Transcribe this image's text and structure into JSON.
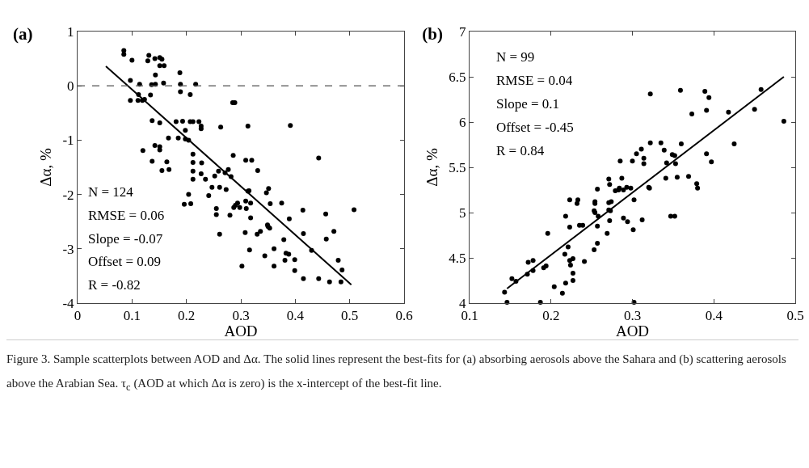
{
  "chart_data": [
    {
      "type": "scatter",
      "title": "(a)",
      "xlabel": "AOD",
      "ylabel": "Δα, %",
      "grid": false,
      "xlim": [
        0,
        0.6
      ],
      "xticks": [
        0,
        0.1,
        0.2,
        0.3,
        0.4,
        0.5,
        0.6
      ],
      "ylim": [
        -4,
        1
      ],
      "yticks": [
        -4,
        -3,
        -2,
        -1,
        0,
        1
      ],
      "ref_lines": [
        {
          "axis": "y",
          "value": 0,
          "color": "#555555",
          "line_style": "dashed"
        }
      ],
      "annotations": [
        "N = 124",
        "RMSE = 0.06",
        "Slope = -0.07",
        "Offset = 0.09",
        "R = -0.82"
      ],
      "series": [
        {
          "type": "scatter",
          "color": "#000000",
          "x": [
            0.085,
            0.085,
            0.1,
            0.131,
            0.129,
            0.142,
            0.151,
            0.155,
            0.151,
            0.159,
            0.143,
            0.097,
            0.114,
            0.136,
            0.143,
            0.158,
            0.188,
            0.189,
            0.217,
            0.189,
            0.207,
            0.112,
            0.097,
            0.111,
            0.119,
            0.123,
            0.134,
            0.285,
            0.289,
            0.137,
            0.151,
            0.181,
            0.193,
            0.207,
            0.212,
            0.223,
            0.227,
            0.227,
            0.263,
            0.313,
            0.198,
            0.167,
            0.185,
            0.198,
            0.204,
            0.12,
            0.142,
            0.151,
            0.151,
            0.137,
            0.164,
            0.155,
            0.168,
            0.212,
            0.212,
            0.228,
            0.286,
            0.309,
            0.32,
            0.331,
            0.212,
            0.227,
            0.212,
            0.235,
            0.252,
            0.259,
            0.271,
            0.277,
            0.282,
            0.247,
            0.261,
            0.273,
            0.315,
            0.241,
            0.204,
            0.196,
            0.208,
            0.255,
            0.255,
            0.28,
            0.287,
            0.294,
            0.298,
            0.29,
            0.31,
            0.318,
            0.318,
            0.309,
            0.391,
            0.443,
            0.313,
            0.347,
            0.351,
            0.354,
            0.375,
            0.414,
            0.456,
            0.508,
            0.349,
            0.389,
            0.261,
            0.308,
            0.33,
            0.336,
            0.35,
            0.353,
            0.379,
            0.415,
            0.457,
            0.471,
            0.316,
            0.361,
            0.344,
            0.383,
            0.388,
            0.381,
            0.399,
            0.43,
            0.302,
            0.361,
            0.399,
            0.479,
            0.486,
            0.415,
            0.443,
            0.463,
            0.484
          ],
          "values": [
            0.65,
            0.58,
            0.47,
            0.56,
            0.46,
            0.5,
            0.52,
            0.49,
            0.37,
            0.37,
            0.2,
            0.1,
            0.03,
            0.02,
            0.03,
            0.05,
            0.24,
            0.03,
            0.03,
            -0.11,
            -0.16,
            -0.16,
            -0.27,
            -0.27,
            -0.27,
            -0.25,
            -0.17,
            -0.31,
            -0.31,
            -0.64,
            -0.68,
            -0.66,
            -0.65,
            -0.66,
            -0.66,
            -0.66,
            -0.74,
            -0.79,
            -0.76,
            -0.74,
            -0.82,
            -0.96,
            -0.96,
            -0.98,
            -1.0,
            -1.19,
            -1.1,
            -1.12,
            -1.18,
            -1.39,
            -1.4,
            -1.56,
            -1.54,
            -1.26,
            -1.41,
            -1.42,
            -1.28,
            -1.37,
            -1.37,
            -1.56,
            -1.57,
            -1.62,
            -1.72,
            -1.72,
            -1.66,
            -1.57,
            -1.6,
            -1.54,
            -1.67,
            -1.87,
            -1.87,
            -1.91,
            -1.93,
            -2.02,
            -2.0,
            -2.18,
            -2.17,
            -2.26,
            -2.37,
            -2.38,
            -2.24,
            -2.16,
            -2.24,
            -2.2,
            -2.26,
            -2.16,
            -2.43,
            -2.12,
            -0.73,
            -1.33,
            -1.94,
            -1.97,
            -1.89,
            -2.17,
            -2.16,
            -2.29,
            -2.36,
            -2.28,
            -2.56,
            -2.45,
            -2.73,
            -2.7,
            -2.73,
            -2.68,
            -2.59,
            -2.62,
            -2.83,
            -2.72,
            -2.82,
            -2.68,
            -3.02,
            -3.0,
            -3.13,
            -3.08,
            -3.1,
            -3.21,
            -3.2,
            -3.03,
            -3.32,
            -3.32,
            -3.4,
            -3.21,
            -3.39,
            -3.55,
            -3.55,
            -3.61,
            -3.61
          ]
        },
        {
          "type": "line",
          "color": "#000000",
          "x": [
            0.052,
            0.503
          ],
          "values": [
            0.36,
            -3.66
          ]
        }
      ]
    },
    {
      "type": "scatter",
      "title": "(b)",
      "xlabel": "AOD",
      "ylabel": "Δα, %",
      "grid": false,
      "xlim": [
        0.1,
        0.5
      ],
      "xticks": [
        0.1,
        0.2,
        0.3,
        0.4,
        0.5
      ],
      "ylim": [
        4,
        7
      ],
      "yticks": [
        4,
        4.5,
        5,
        5.5,
        6,
        6.5,
        7
      ],
      "annotations": [
        "N = 99",
        "RMSE = 0.04",
        "Slope = 0.1",
        "Offset = -0.45",
        "R = 0.84"
      ],
      "series": [
        {
          "type": "scatter",
          "color": "#000000",
          "x": [
            0.285,
            0.3,
            0.314,
            0.314,
            0.342,
            0.352,
            0.353,
            0.397,
            0.341,
            0.355,
            0.369,
            0.379,
            0.38,
            0.32,
            0.321,
            0.271,
            0.272,
            0.287,
            0.279,
            0.284,
            0.289,
            0.293,
            0.298,
            0.283,
            0.257,
            0.223,
            0.233,
            0.232,
            0.254,
            0.254,
            0.271,
            0.274,
            0.302,
            0.253,
            0.254,
            0.271,
            0.273,
            0.218,
            0.258,
            0.289,
            0.294,
            0.312,
            0.347,
            0.352,
            0.223,
            0.235,
            0.239,
            0.272,
            0.257,
            0.196,
            0.269,
            0.301,
            0.221,
            0.217,
            0.253,
            0.257,
            0.223,
            0.227,
            0.224,
            0.241,
            0.172,
            0.178,
            0.178,
            0.171,
            0.191,
            0.194,
            0.227,
            0.227,
            0.152,
            0.157,
            0.218,
            0.204,
            0.214,
            0.143,
            0.146,
            0.187,
            0.302,
            0.322,
            0.359,
            0.389,
            0.394,
            0.458,
            0.373,
            0.391,
            0.418,
            0.45,
            0.486,
            0.322,
            0.335,
            0.36,
            0.425,
            0.311,
            0.305,
            0.339,
            0.349,
            0.391
          ],
          "values": [
            5.57,
            5.57,
            5.6,
            5.54,
            5.55,
            5.63,
            5.54,
            5.56,
            5.38,
            5.39,
            5.4,
            5.32,
            5.27,
            5.28,
            5.27,
            5.37,
            5.31,
            5.38,
            5.24,
            5.27,
            5.25,
            5.28,
            5.27,
            5.25,
            5.26,
            5.14,
            5.14,
            5.1,
            5.12,
            5.1,
            5.11,
            5.12,
            5.14,
            5.02,
            5.0,
            5.03,
            5.02,
            4.96,
            4.96,
            4.94,
            4.9,
            4.92,
            4.96,
            4.96,
            4.84,
            4.86,
            4.86,
            4.91,
            4.85,
            4.77,
            4.77,
            4.81,
            4.62,
            4.54,
            4.59,
            4.66,
            4.47,
            4.49,
            4.42,
            4.46,
            4.45,
            4.47,
            4.36,
            4.32,
            4.39,
            4.41,
            4.33,
            4.25,
            4.27,
            4.24,
            4.22,
            4.18,
            4.11,
            4.12,
            4.01,
            4.01,
            4.01,
            6.31,
            6.35,
            6.34,
            6.27,
            6.36,
            6.09,
            6.13,
            6.11,
            6.14,
            6.01,
            5.77,
            5.77,
            5.76,
            5.76,
            5.7,
            5.65,
            5.69,
            5.64,
            5.65
          ]
        },
        {
          "type": "line",
          "color": "#000000",
          "x": [
            0.146,
            0.486
          ],
          "values": [
            4.16,
            6.5
          ]
        }
      ]
    },
    {
      "type": "other",
      "annotations": [
        "Figure 3. Sample scatterplots between AOD and Δα. The solid lines represent the best-fits for (a) absorbing aerosols above the Sahara and (b) scattering aerosols above the Arabian Sea. τ$_{c}$ (AOD at which Δα is zero) is the x-intercept of the best-fit line."
      ]
    }
  ]
}
